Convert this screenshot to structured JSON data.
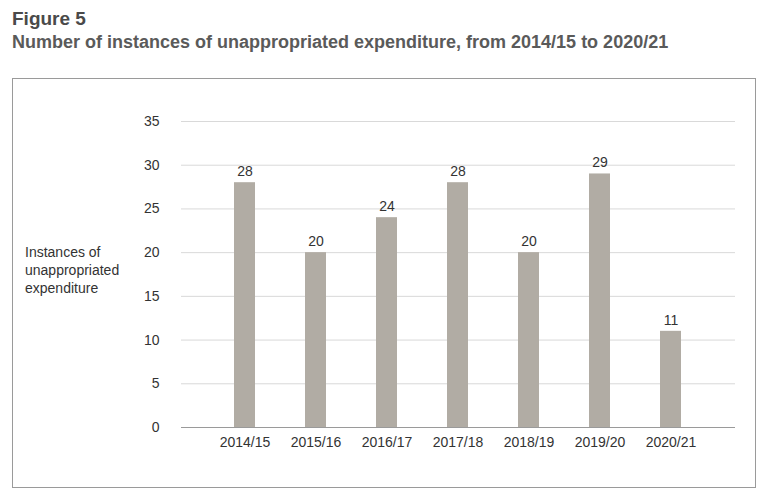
{
  "chart_data": {
    "type": "bar",
    "title": "Figure 5",
    "subtitle": "Number of instances of unappropriated expenditure, from 2014/15 to 2020/21",
    "y_label": "Instances of unappropriated expenditure",
    "categories": [
      "2014/15",
      "2015/16",
      "2016/17",
      "2017/18",
      "2018/19",
      "2019/20",
      "2020/21"
    ],
    "values": [
      28,
      20,
      24,
      28,
      20,
      29,
      11
    ],
    "color": "#b1aca4",
    "ylim": [
      0,
      35
    ],
    "yticks": [
      0,
      5,
      10,
      15,
      20,
      25,
      30,
      35
    ],
    "grid": true,
    "data_labels": true
  }
}
